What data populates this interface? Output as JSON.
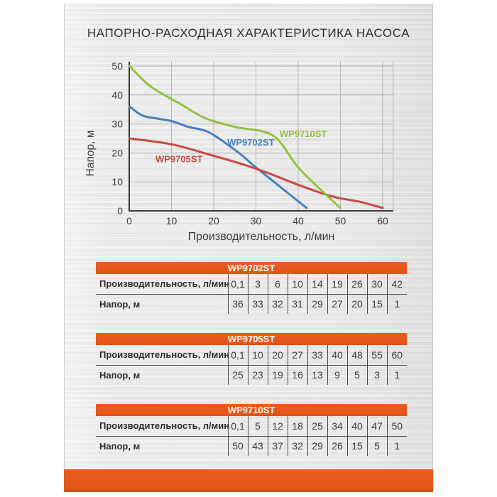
{
  "page": {
    "title": "НАПОРНО-РАСХОДНАЯ ХАРАКТЕРИСТИКА НАСОСА"
  },
  "colors": {
    "accent_orange": "#E5581C",
    "series_blue": "#4680BE",
    "series_red": "#C64940",
    "series_green": "#93C13F",
    "grid": "#B4B4B4",
    "axis": "#3C3C3C"
  },
  "chart_data": {
    "type": "line",
    "title": "НАПОРНО-РАСХОДНАЯ ХАРАКТЕРИСТИКА НАСОСА",
    "xlabel": "Производительность, л/мин",
    "ylabel": "Напор, м",
    "xlim": [
      0,
      62.5
    ],
    "ylim": [
      0,
      51.5
    ],
    "xticks": [
      0,
      10,
      20,
      30,
      40,
      50,
      60
    ],
    "yticks": [
      0,
      10,
      20,
      30,
      40,
      50
    ],
    "grid": true,
    "legend_position": "inline-labels",
    "series": [
      {
        "name": "WP9702ST",
        "color": "#4680BE",
        "x": [
          0.1,
          3,
          6,
          10,
          14,
          19,
          26,
          30,
          42
        ],
        "y": [
          36,
          33,
          32,
          31,
          29,
          27,
          20,
          15,
          1
        ],
        "label_pos": {
          "x": 28.8,
          "y": 22.6
        }
      },
      {
        "name": "WP9705ST",
        "color": "#C64940",
        "x": [
          0.1,
          10,
          20,
          27,
          33,
          40,
          48,
          55,
          60
        ],
        "y": [
          25,
          23,
          19,
          16,
          13,
          9,
          5,
          3,
          1
        ],
        "label_pos": {
          "x": 11.8,
          "y": 16.8
        }
      },
      {
        "name": "WP9710ST",
        "color": "#93C13F",
        "x": [
          0.1,
          5,
          12,
          18,
          25,
          34,
          40,
          47,
          50
        ],
        "y": [
          50,
          43,
          37,
          32,
          29,
          26,
          15,
          5,
          1
        ],
        "label_pos": {
          "x": 41.2,
          "y": 25.5
        }
      }
    ]
  },
  "tables": [
    {
      "title": "WP9702ST",
      "rows": [
        {
          "label": "Производительность, л/мин",
          "values": [
            "0,1",
            "3",
            "6",
            "10",
            "14",
            "19",
            "26",
            "30",
            "42"
          ]
        },
        {
          "label": "Напор, м",
          "values": [
            "36",
            "33",
            "32",
            "31",
            "29",
            "27",
            "20",
            "15",
            "1"
          ]
        }
      ]
    },
    {
      "title": "WP9705ST",
      "rows": [
        {
          "label": "Производительность, л/мин",
          "values": [
            "0,1",
            "10",
            "20",
            "27",
            "33",
            "40",
            "48",
            "55",
            "60"
          ]
        },
        {
          "label": "Напор, м",
          "values": [
            "25",
            "23",
            "19",
            "16",
            "13",
            "9",
            "5",
            "3",
            "1"
          ]
        }
      ]
    },
    {
      "title": "WP9710ST",
      "rows": [
        {
          "label": "Производительность, л/мин",
          "values": [
            "0,1",
            "5",
            "12",
            "18",
            "25",
            "34",
            "40",
            "47",
            "50"
          ]
        },
        {
          "label": "Напор, м",
          "values": [
            "50",
            "43",
            "37",
            "32",
            "29",
            "26",
            "15",
            "5",
            "1"
          ]
        }
      ]
    }
  ]
}
